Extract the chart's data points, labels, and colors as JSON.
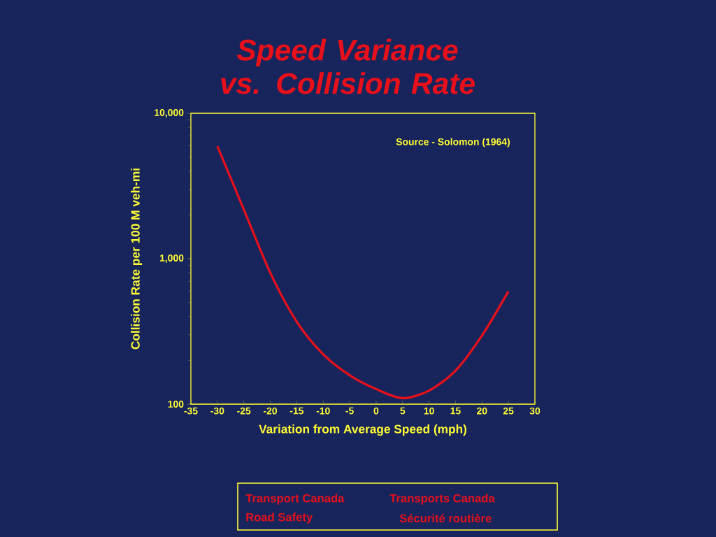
{
  "chart_data": {
    "type": "line",
    "title": "Speed Variance vs. Collision Rate",
    "xlabel": "Variation from Average Speed (mph)",
    "ylabel": "Collision Rate per 100 M veh-mi",
    "x": [
      -30,
      -25,
      -20,
      -15,
      -10,
      -5,
      0,
      5,
      10,
      15,
      20,
      25
    ],
    "series": [
      {
        "color": "#e8101a",
        "values": [
          5940,
          2180,
          800,
          369,
          220,
          158,
          127,
          110,
          124,
          170,
          296,
          597
        ]
      }
    ],
    "log": "y",
    "xlim": [
      -35,
      30
    ],
    "xticks": [
      -35,
      -30,
      -25,
      -20,
      -15,
      -10,
      -5,
      0,
      5,
      10,
      15,
      20,
      25,
      30
    ],
    "ylim": [
      100,
      10000
    ],
    "yticks": [
      {
        "value": 100,
        "label": "100"
      },
      {
        "value": 1000,
        "label": "1,000"
      },
      {
        "value": 10000,
        "label": "10,000"
      }
    ],
    "grid": false,
    "marker": "none",
    "line_style": "solid",
    "annotations": [
      "Source - Solomon (1964)",
      "Transport Canada",
      "Road Safety",
      "Transports Canada",
      "Sécurité routière"
    ]
  }
}
